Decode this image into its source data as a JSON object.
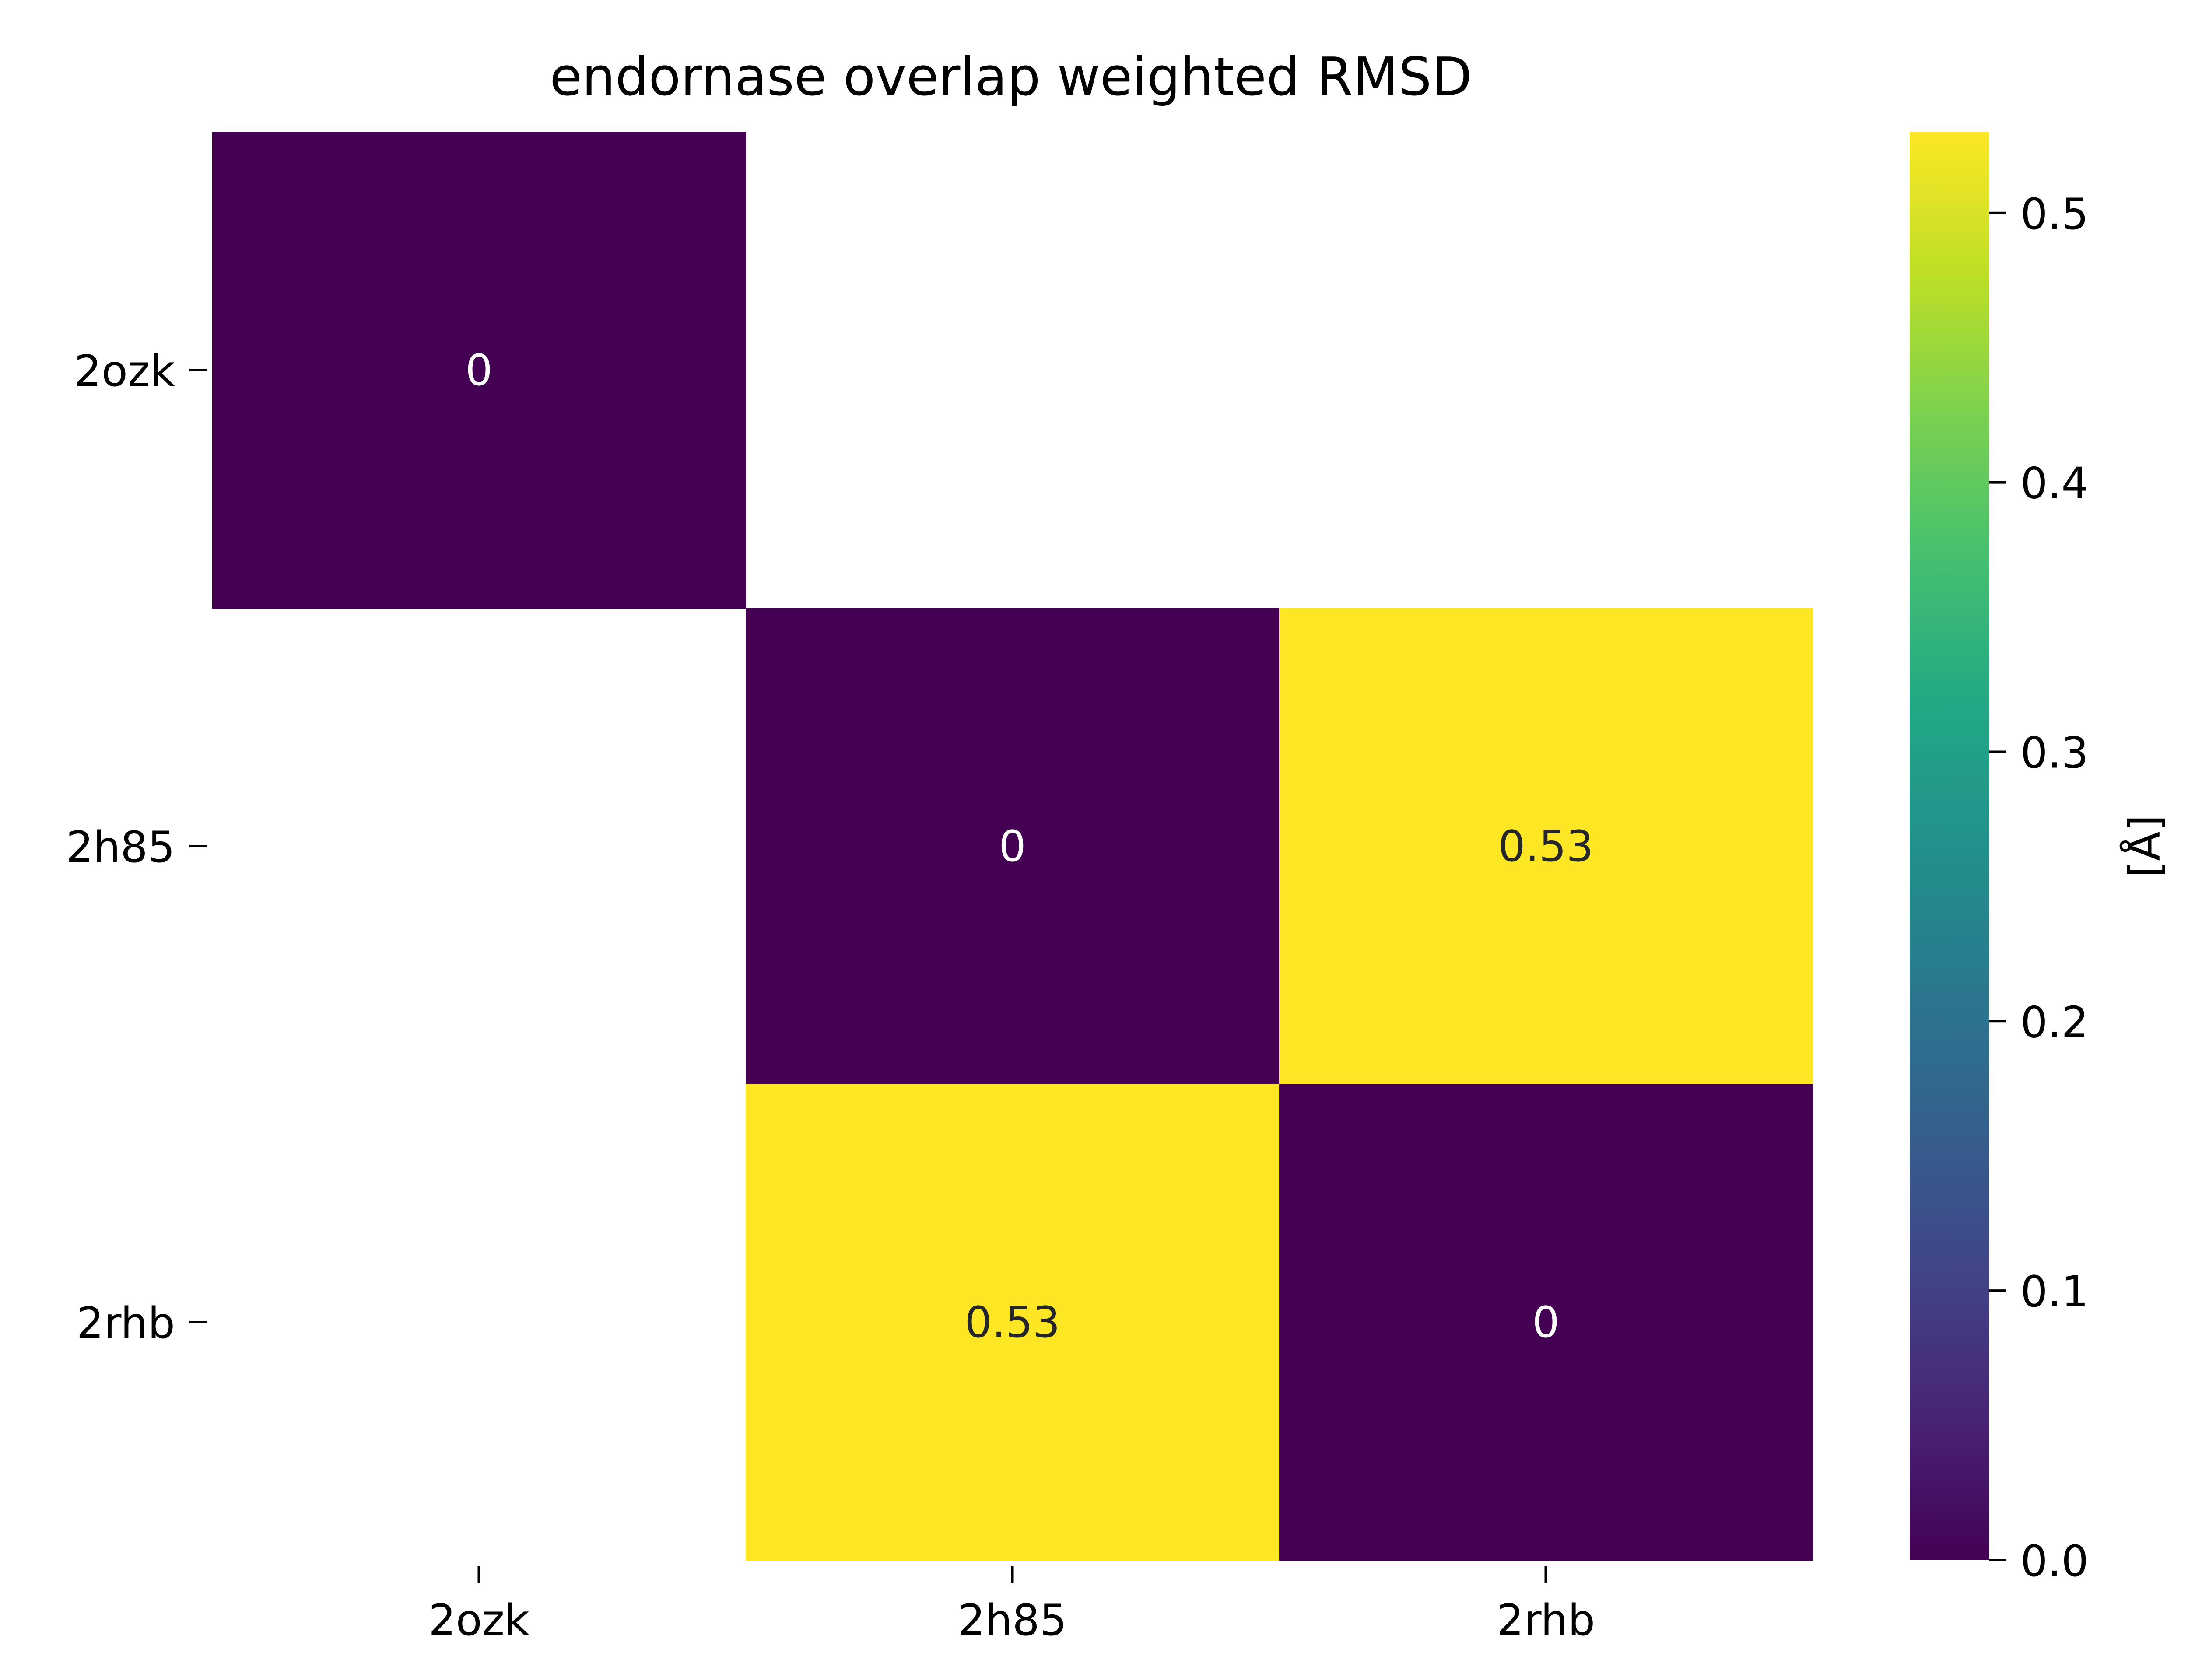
{
  "chart_data": {
    "type": "heatmap",
    "title": "endornase overlap weighted RMSD",
    "x_categories": [
      "2ozk",
      "2h85",
      "2rhb"
    ],
    "y_categories": [
      "2ozk",
      "2h85",
      "2rhb"
    ],
    "cells": [
      [
        0,
        null,
        null
      ],
      [
        null,
        0,
        0.53
      ],
      [
        null,
        0.53,
        0
      ]
    ],
    "cell_labels": [
      [
        "0",
        "",
        ""
      ],
      [
        "",
        "0",
        "0.53"
      ],
      [
        "",
        "0.53",
        "0"
      ]
    ],
    "colorbar": {
      "label": "[Å]",
      "range": [
        0,
        0.53
      ],
      "ticks": [
        0.0,
        0.1,
        0.2,
        0.3,
        0.4,
        0.5
      ],
      "tick_labels": [
        "0.0",
        "0.1",
        "0.2",
        "0.3",
        "0.4",
        "0.5"
      ],
      "colormap": "viridis"
    },
    "colors": {
      "low": "#440154",
      "high": "#fde725",
      "label_on_dark": "#ffffff",
      "label_on_light": "#262626"
    }
  }
}
